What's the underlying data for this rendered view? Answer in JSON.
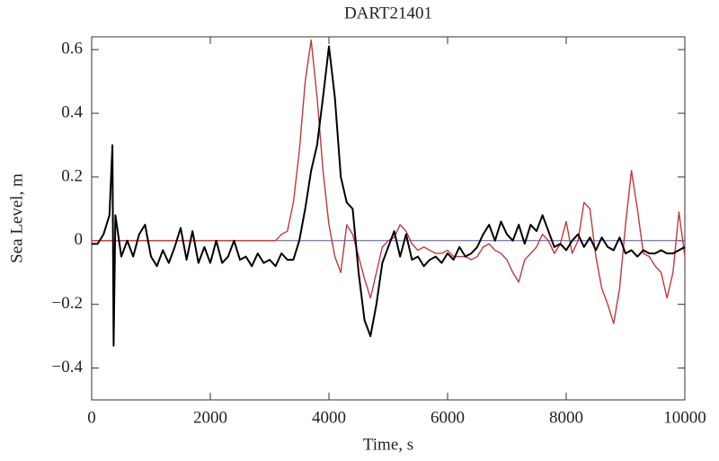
{
  "chart_data": {
    "type": "line",
    "title": "DART21401",
    "x_label": "Time, s",
    "y_label": "Sea Level, m",
    "x": [
      0,
      100,
      200,
      300,
      350,
      370,
      400,
      500,
      600,
      700,
      800,
      900,
      1000,
      1100,
      1200,
      1300,
      1400,
      1500,
      1600,
      1700,
      1800,
      1900,
      2000,
      2100,
      2200,
      2300,
      2400,
      2500,
      2600,
      2700,
      2800,
      2900,
      3000,
      3100,
      3200,
      3300,
      3400,
      3500,
      3600,
      3700,
      3800,
      3900,
      4000,
      4100,
      4200,
      4300,
      4400,
      4500,
      4600,
      4700,
      4800,
      4900,
      5000,
      5100,
      5200,
      5300,
      5400,
      5500,
      5600,
      5700,
      5800,
      5900,
      6000,
      6100,
      6200,
      6300,
      6400,
      6500,
      6600,
      6700,
      6800,
      6900,
      7000,
      7100,
      7200,
      7300,
      7400,
      7500,
      7600,
      7700,
      7800,
      7900,
      8000,
      8100,
      8200,
      8300,
      8400,
      8500,
      8600,
      8700,
      8800,
      8900,
      9000,
      9100,
      9200,
      9300,
      9400,
      9500,
      9600,
      9700,
      9800,
      9900,
      10000
    ],
    "series": [
      {
        "color": "#c0393b",
        "values": [
          0,
          0,
          0,
          0,
          0,
          0,
          0,
          0,
          0,
          0,
          0,
          0,
          0,
          0,
          0,
          0,
          0,
          0,
          0,
          0,
          0,
          0,
          0,
          0,
          0,
          0,
          0,
          0,
          0,
          0,
          0,
          0,
          0,
          0,
          0.02,
          0.03,
          0.12,
          0.28,
          0.5,
          0.63,
          0.45,
          0.22,
          0.05,
          -0.05,
          -0.1,
          0.05,
          0.02,
          -0.05,
          -0.12,
          -0.18,
          -0.1,
          -0.02,
          0,
          0.01,
          0.05,
          0.03,
          -0.01,
          -0.03,
          -0.02,
          -0.03,
          -0.04,
          -0.04,
          -0.03,
          -0.05,
          -0.05,
          -0.05,
          -0.06,
          -0.05,
          -0.02,
          -0.01,
          -0.03,
          -0.04,
          -0.06,
          -0.1,
          -0.13,
          -0.06,
          -0.04,
          -0.02,
          0.02,
          0,
          -0.04,
          -0.01,
          0.06,
          -0.04,
          0,
          0.12,
          0.1,
          -0.05,
          -0.15,
          -0.2,
          -0.26,
          -0.15,
          0.05,
          0.22,
          0.1,
          -0.04,
          -0.05,
          -0.08,
          -0.1,
          -0.18,
          -0.1,
          0.09,
          -0.05
        ]
      },
      {
        "color": "#000000",
        "values": [
          -0.01,
          -0.01,
          0.02,
          0.08,
          0.3,
          -0.33,
          0.08,
          -0.05,
          0,
          -0.05,
          0.02,
          0.05,
          -0.05,
          -0.08,
          -0.03,
          -0.07,
          -0.02,
          0.04,
          -0.06,
          0.03,
          -0.07,
          -0.02,
          -0.07,
          0,
          -0.07,
          -0.05,
          0,
          -0.06,
          -0.05,
          -0.08,
          -0.04,
          -0.07,
          -0.06,
          -0.08,
          -0.04,
          -0.06,
          -0.06,
          0,
          0.1,
          0.22,
          0.3,
          0.45,
          0.61,
          0.45,
          0.2,
          0.12,
          0.1,
          -0.1,
          -0.25,
          -0.3,
          -0.2,
          -0.07,
          -0.02,
          0.03,
          -0.05,
          0.02,
          -0.06,
          -0.05,
          -0.08,
          -0.06,
          -0.05,
          -0.07,
          -0.04,
          -0.06,
          -0.02,
          -0.05,
          -0.04,
          -0.02,
          0.02,
          0.05,
          0,
          0.06,
          0.02,
          0,
          0.05,
          -0.01,
          0.05,
          0.03,
          0.08,
          0.03,
          -0.02,
          -0.01,
          -0.03,
          0,
          0.02,
          -0.02,
          0.01,
          -0.03,
          0.01,
          -0.02,
          -0.03,
          0.01,
          -0.04,
          -0.03,
          -0.05,
          -0.03,
          -0.04,
          -0.04,
          -0.03,
          -0.04,
          -0.04,
          -0.03,
          -0.02
        ]
      }
    ],
    "reference_line": {
      "value": 0,
      "color": "#55559a"
    },
    "xlim": [
      0,
      10000
    ],
    "xticks": [
      0,
      2000,
      4000,
      6000,
      8000,
      10000
    ],
    "ylim": [
      -0.5,
      0.64
    ],
    "yticks": [
      {
        "value": -0.4,
        "label": "−0.4"
      },
      {
        "value": -0.2,
        "label": "−0.2"
      },
      0,
      0.2,
      0.4,
      0.6
    ]
  }
}
